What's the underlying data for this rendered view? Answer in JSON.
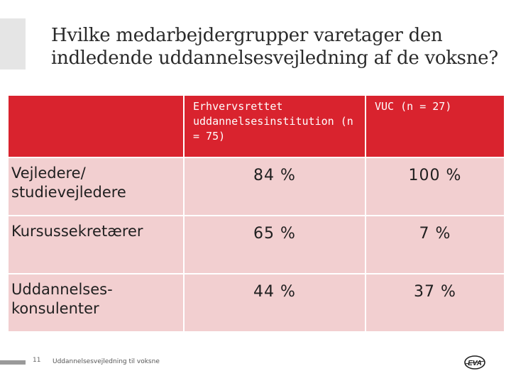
{
  "slide": {
    "title": "Hvilke medarbejdergrupper varetager den indledende uddannelsesvejledning af de voksne?"
  },
  "table": {
    "headers": [
      "",
      "Erhvervsrettet uddannelsesinstitution (n = 75)",
      "VUC (n = 27)"
    ],
    "rows": [
      {
        "label": "Vejledere/ studievejledere",
        "erhverv": "84 %",
        "vuc": "100 %"
      },
      {
        "label": "Kursussekretærer",
        "erhverv": "65 %",
        "vuc": "7 %"
      },
      {
        "label": "Uddannelses-konsulenter",
        "erhverv": "44 %",
        "vuc": "37 %"
      }
    ]
  },
  "footer": {
    "page_number": "11",
    "text": "Uddannelsesvejledning til voksne",
    "logo_text": "EVA"
  },
  "colors": {
    "header_red": "#d9232e",
    "row_pink": "#f2cfd0",
    "accent_gray": "#e5e5e5"
  }
}
